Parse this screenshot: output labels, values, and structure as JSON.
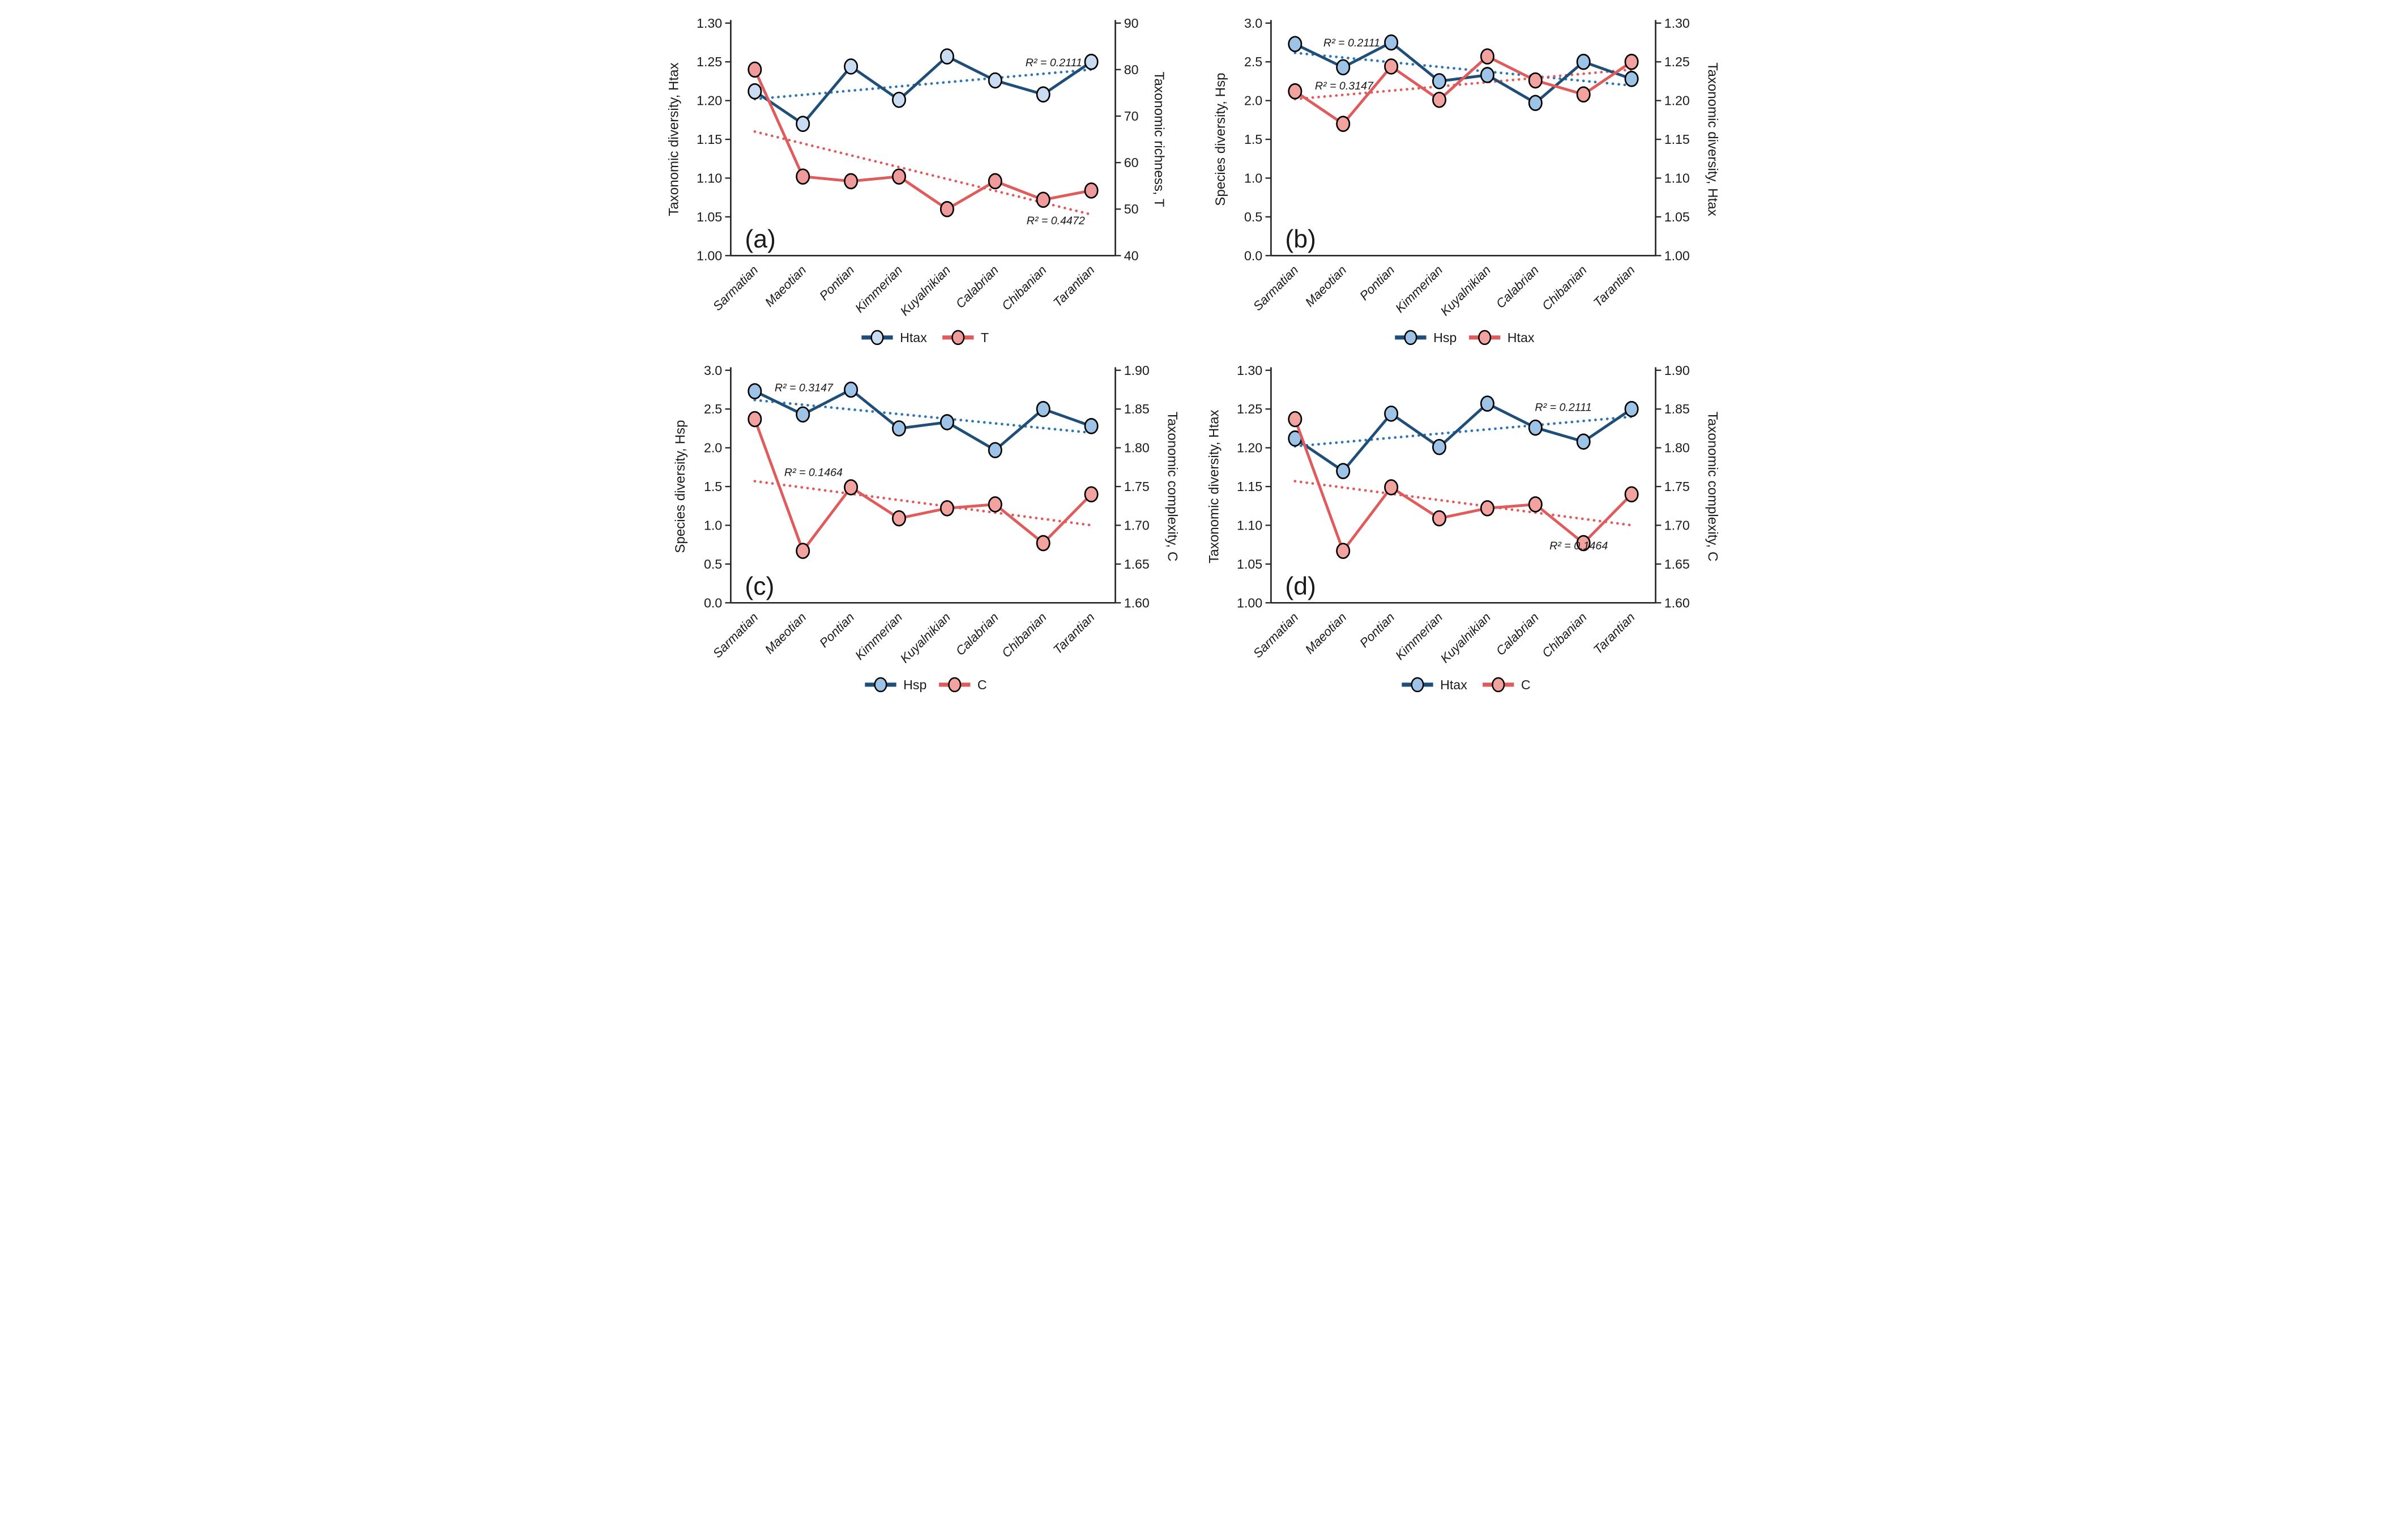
{
  "chart_data": {
    "type": "line",
    "description": "Four-panel line chart comparing diversity indices across geological stages; each panel has two series (solid lines with circular markers) plus dotted linear trendlines and R-squared annotations.",
    "grid": false,
    "legend_position": "bottom-center",
    "categories": [
      "Sarmatian",
      "Maeotian",
      "Pontian",
      "Kimmerian",
      "Kuyalnikian",
      "Calabrian",
      "Chibanian",
      "Tarantian"
    ],
    "colors": {
      "blue_line": "#1F4E79",
      "blue_trend": "#2E75B6",
      "red_line": "#E05C5C",
      "red_trend": "#E05C5C",
      "marker_stroke": "#000000",
      "axis": "#262626",
      "panel_letter": "#3F3F3F"
    },
    "panels": [
      {
        "id": "a",
        "letter": "(a)",
        "left_axis": {
          "title": "Taxonomic diversity, Htax",
          "min": 1.0,
          "max": 1.3,
          "ticks": [
            "1.00",
            "1.05",
            "1.10",
            "1.15",
            "1.20",
            "1.25",
            "1.30"
          ]
        },
        "right_axis": {
          "title": "Taxonomic richness, T",
          "min": 40,
          "max": 90,
          "ticks": [
            "40",
            "50",
            "60",
            "70",
            "80",
            "90"
          ]
        },
        "series": [
          {
            "name": "Htax",
            "axis": "left",
            "values": [
              1.212,
              1.17,
              1.244,
              1.201,
              1.257,
              1.226,
              1.208,
              1.25
            ],
            "line_color": "#1F4E79",
            "trend_color": "#2E75B6",
            "marker_fill": "#C9DCF2"
          },
          {
            "name": "T",
            "axis": "right",
            "values": [
              80,
              57,
              56,
              57,
              50,
              56,
              52,
              54
            ],
            "line_color": "#E05C5C",
            "trend_color": "#E05C5C",
            "marker_fill": "#F09B9B"
          }
        ],
        "annotations": [
          {
            "text": "R² = 0.2111",
            "fx": 0.84,
            "fy": 0.17
          },
          {
            "text": "R² = 0.4472",
            "fx": 0.845,
            "fy": 0.85
          }
        ]
      },
      {
        "id": "b",
        "letter": "(b)",
        "left_axis": {
          "title": "Species diversity, Hsp",
          "min": 0.0,
          "max": 3.0,
          "ticks": [
            "0.0",
            "0.5",
            "1.0",
            "1.5",
            "2.0",
            "2.5",
            "3.0"
          ]
        },
        "right_axis": {
          "title": "Taxonomic diversity, Htax",
          "min": 1.0,
          "max": 1.3,
          "ticks": [
            "1.00",
            "1.05",
            "1.10",
            "1.15",
            "1.20",
            "1.25",
            "1.30"
          ]
        },
        "series": [
          {
            "name": "Hsp",
            "axis": "left",
            "values": [
              2.73,
              2.43,
              2.75,
              2.25,
              2.33,
              1.97,
              2.5,
              2.28
            ],
            "line_color": "#1F4E79",
            "trend_color": "#2E75B6",
            "marker_fill": "#9DC3E6"
          },
          {
            "name": "Htax",
            "axis": "right",
            "values": [
              1.212,
              1.17,
              1.244,
              1.201,
              1.257,
              1.226,
              1.208,
              1.25
            ],
            "line_color": "#E05C5C",
            "trend_color": "#E05C5C",
            "marker_fill": "#F2A3A0"
          }
        ],
        "annotations": [
          {
            "text": "R² = 0.2111",
            "fx": 0.21,
            "fy": 0.085
          },
          {
            "text": "R² = 0.3147",
            "fx": 0.19,
            "fy": 0.27
          }
        ]
      },
      {
        "id": "c",
        "letter": "(c)",
        "left_axis": {
          "title": "Species diversity, Hsp",
          "min": 0.0,
          "max": 3.0,
          "ticks": [
            "0.0",
            "0.5",
            "1.0",
            "1.5",
            "2.0",
            "2.5",
            "3.0"
          ]
        },
        "right_axis": {
          "title": "Taxonomic complexity, C",
          "min": 1.6,
          "max": 1.9,
          "ticks": [
            "1.60",
            "1.65",
            "1.70",
            "1.75",
            "1.80",
            "1.85",
            "1.90"
          ]
        },
        "series": [
          {
            "name": "Hsp",
            "axis": "left",
            "values": [
              2.73,
              2.43,
              2.75,
              2.25,
              2.33,
              1.97,
              2.5,
              2.28
            ],
            "line_color": "#1F4E79",
            "trend_color": "#2E75B6",
            "marker_fill": "#9DC3E6"
          },
          {
            "name": "C",
            "axis": "right",
            "values": [
              1.837,
              1.667,
              1.749,
              1.709,
              1.722,
              1.727,
              1.677,
              1.74
            ],
            "line_color": "#E05C5C",
            "trend_color": "#E05C5C",
            "marker_fill": "#F2A3A0"
          }
        ],
        "annotations": [
          {
            "text": "R² = 0.3147",
            "fx": 0.19,
            "fy": 0.075
          },
          {
            "text": "R² = 0.1464",
            "fx": 0.215,
            "fy": 0.44
          }
        ]
      },
      {
        "id": "d",
        "letter": "(d)",
        "left_axis": {
          "title": "Taxonomic diversity, Htax",
          "min": 1.0,
          "max": 1.3,
          "ticks": [
            "1.00",
            "1.05",
            "1.10",
            "1.15",
            "1.20",
            "1.25",
            "1.30"
          ]
        },
        "right_axis": {
          "title": "Taxonomic complexity, C",
          "min": 1.6,
          "max": 1.9,
          "ticks": [
            "1.60",
            "1.65",
            "1.70",
            "1.75",
            "1.80",
            "1.85",
            "1.90"
          ]
        },
        "series": [
          {
            "name": "Htax",
            "axis": "left",
            "values": [
              1.212,
              1.17,
              1.244,
              1.201,
              1.257,
              1.226,
              1.208,
              1.25
            ],
            "line_color": "#1F4E79",
            "trend_color": "#2E75B6",
            "marker_fill": "#9DC3E6"
          },
          {
            "name": "C",
            "axis": "right",
            "values": [
              1.837,
              1.667,
              1.749,
              1.709,
              1.722,
              1.727,
              1.677,
              1.74
            ],
            "line_color": "#E05C5C",
            "trend_color": "#E05C5C",
            "marker_fill": "#F2A3A0"
          }
        ],
        "annotations": [
          {
            "text": "R² = 0.2111",
            "fx": 0.76,
            "fy": 0.16
          },
          {
            "text": "R² = 0.1464",
            "fx": 0.8,
            "fy": 0.755
          }
        ]
      }
    ]
  }
}
